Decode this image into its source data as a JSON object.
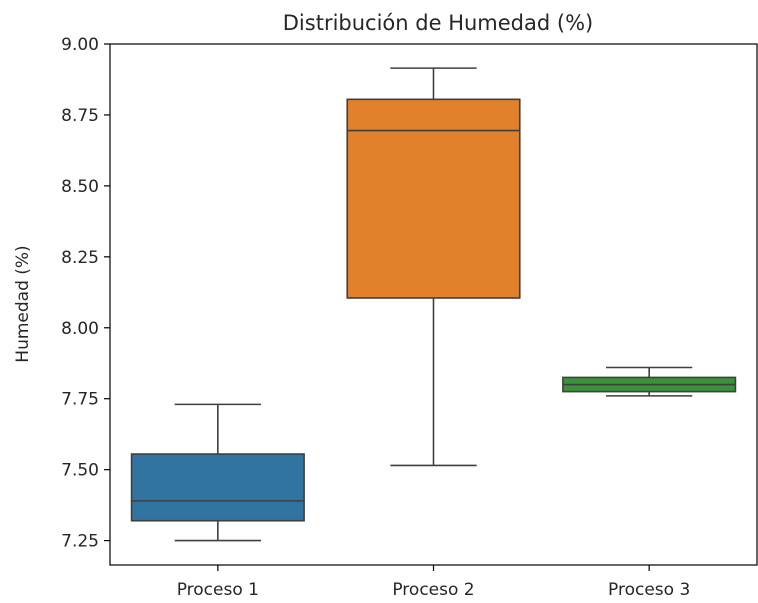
{
  "chart_data": {
    "type": "box",
    "title": "Distribución de Humedad (%)",
    "xlabel": "",
    "ylabel": "Humedad (%)",
    "ylim": [
      7.164,
      9.0
    ],
    "yticks": [
      "7.25",
      "7.50",
      "7.75",
      "8.00",
      "8.25",
      "8.50",
      "8.75",
      "9.00"
    ],
    "grid": false,
    "categories": [
      "Proceso 1",
      "Proceso 2",
      "Proceso 3"
    ],
    "boxes": [
      {
        "whisker_low": 7.25,
        "q1": 7.32,
        "median": 7.39,
        "q3": 7.555,
        "whisker_high": 7.73,
        "color": "#3274a1"
      },
      {
        "whisker_low": 7.515,
        "q1": 8.105,
        "median": 8.695,
        "q3": 8.805,
        "whisker_high": 8.915,
        "color": "#e1812c"
      },
      {
        "whisker_low": 7.76,
        "q1": 7.775,
        "median": 7.8,
        "q3": 7.825,
        "whisker_high": 7.86,
        "color": "#3a923a"
      }
    ]
  }
}
